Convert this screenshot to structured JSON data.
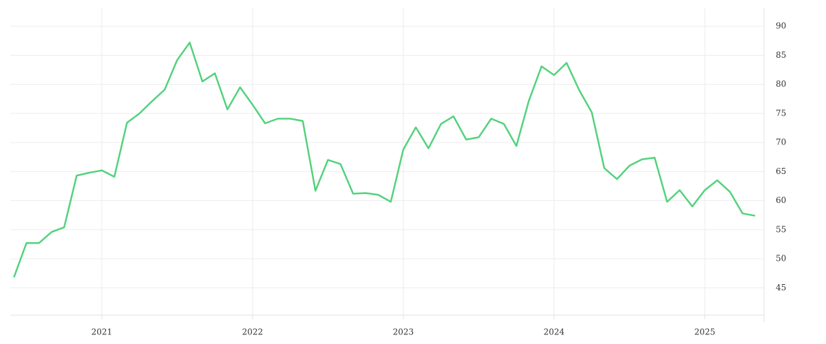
{
  "chart_data": {
    "type": "line",
    "x": [
      2020.417,
      2020.5,
      2020.583,
      2020.667,
      2020.75,
      2020.833,
      2020.917,
      2021,
      2021.083,
      2021.167,
      2021.25,
      2021.333,
      2021.417,
      2021.5,
      2021.583,
      2021.667,
      2021.75,
      2021.833,
      2021.917,
      2022,
      2022.083,
      2022.167,
      2022.25,
      2022.333,
      2022.417,
      2022.5,
      2022.583,
      2022.667,
      2022.75,
      2022.833,
      2022.917,
      2023,
      2023.083,
      2023.167,
      2023.25,
      2023.333,
      2023.417,
      2023.5,
      2023.583,
      2023.667,
      2023.75,
      2023.833,
      2023.917,
      2024,
      2024.083,
      2024.167,
      2024.25,
      2024.333,
      2024.417,
      2024.5,
      2024.583,
      2024.667,
      2024.75,
      2024.833,
      2024.917,
      2025,
      2025.083,
      2025.167,
      2025.25,
      2025.333
    ],
    "series": [
      {
        "color": "#52d27c",
        "values": [
          46.8,
          52.7,
          52.7,
          54.6,
          55.4,
          64.3,
          64.8,
          65.2,
          64.1,
          73.4,
          75.0,
          77.1,
          79.1,
          84.2,
          87.2,
          80.5,
          81.9,
          75.7,
          79.5,
          76.5,
          73.3,
          74.1,
          74.1,
          73.7,
          61.7,
          67.0,
          66.3,
          61.2,
          61.3,
          61.0,
          59.8,
          68.8,
          72.6,
          69.0,
          73.2,
          74.5,
          70.5,
          70.9,
          74.1,
          73.2,
          69.4,
          77.2,
          83.1,
          81.6,
          83.7,
          79.0,
          75.2,
          65.6,
          63.7,
          66.0,
          67.1,
          67.4,
          59.8,
          61.8,
          59.0,
          61.8,
          63.5,
          61.5,
          57.8,
          57.4
        ]
      }
    ],
    "xlim": [
      2020.393,
      2025.393
    ],
    "xticks": [
      2021,
      2022,
      2023,
      2024,
      2025
    ],
    "ylim": [
      40.3,
      93.1
    ],
    "yticks": [
      45,
      50,
      55,
      60,
      65,
      70,
      75,
      80,
      85,
      90
    ],
    "grid": true
  }
}
